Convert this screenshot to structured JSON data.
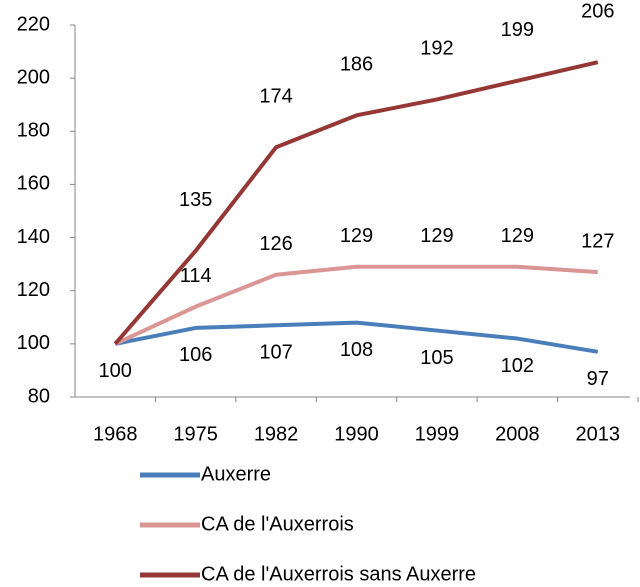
{
  "chart_data": {
    "type": "line",
    "categories": [
      "1968",
      "1975",
      "1982",
      "1990",
      "1999",
      "2008",
      "2013"
    ],
    "series": [
      {
        "name": "Auxerre",
        "color": "#4a7ebb",
        "values": [
          100,
          106,
          107,
          108,
          105,
          102,
          97
        ]
      },
      {
        "name": "CA de l'Auxerrois",
        "color": "#d99694",
        "values": [
          100,
          114,
          126,
          129,
          129,
          129,
          127
        ]
      },
      {
        "name": "CA de l'Auxerrois sans Auxerre",
        "color": "#953735",
        "values": [
          100,
          135,
          174,
          186,
          192,
          199,
          206
        ]
      }
    ],
    "ylim": [
      80,
      220
    ],
    "yticks": [
      80,
      100,
      120,
      140,
      160,
      180,
      200,
      220
    ],
    "grid": false,
    "legend": "bottom",
    "data_labels": true
  }
}
